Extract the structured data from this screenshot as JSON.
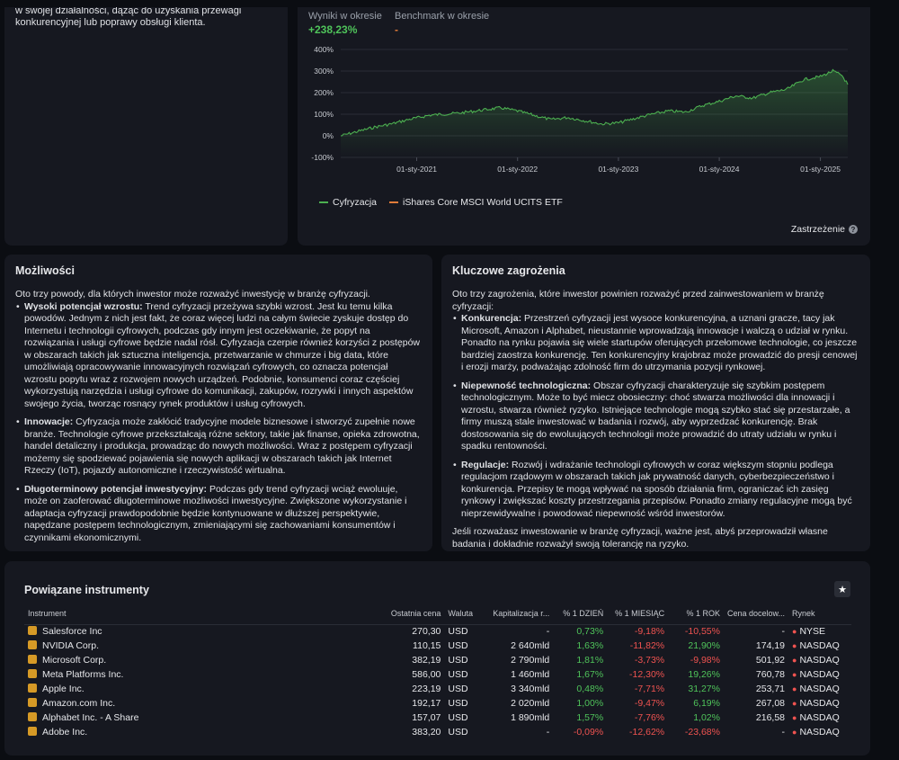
{
  "description": {
    "text": "w swojej działalności, dążąc do uzyskania przewagi konkurencyjnej lub poprawy obsługi klienta."
  },
  "performance": {
    "results_label": "Wyniki w okresie",
    "results_value": "+238,23%",
    "benchmark_label": "Benchmark w okresie",
    "benchmark_value": "-",
    "disclaimer": "Zastrzeżenie",
    "colors": {
      "series": "#4caf50",
      "benchmark": "#e07b39",
      "positive": "#4fc35a"
    }
  },
  "chart_data": {
    "type": "line",
    "yticks": [
      "400%",
      "300%",
      "200%",
      "100%",
      "0%",
      "-100%"
    ],
    "ylim": [
      -100,
      400
    ],
    "xticks": [
      "01-sty-2021",
      "01-sty-2022",
      "01-sty-2023",
      "01-sty-2024",
      "01-sty-2025"
    ],
    "grid": true,
    "legend_position": "bottom-left",
    "series": [
      {
        "name": "Cyfryzacja",
        "color": "#4caf50",
        "points": [
          [
            "2020-04-01",
            0
          ],
          [
            "2020-06-01",
            20
          ],
          [
            "2020-08-01",
            40
          ],
          [
            "2020-10-01",
            55
          ],
          [
            "2020-12-01",
            75
          ],
          [
            "2021-02-15",
            95
          ],
          [
            "2021-04-01",
            100
          ],
          [
            "2021-06-01",
            105
          ],
          [
            "2021-08-01",
            115
          ],
          [
            "2021-11-01",
            130
          ],
          [
            "2022-01-01",
            115
          ],
          [
            "2022-03-01",
            95
          ],
          [
            "2022-05-01",
            75
          ],
          [
            "2022-07-01",
            85
          ],
          [
            "2022-09-01",
            70
          ],
          [
            "2022-11-01",
            55
          ],
          [
            "2023-01-01",
            60
          ],
          [
            "2023-03-01",
            80
          ],
          [
            "2023-05-01",
            100
          ],
          [
            "2023-07-01",
            115
          ],
          [
            "2023-09-01",
            110
          ],
          [
            "2023-11-01",
            140
          ],
          [
            "2024-01-01",
            160
          ],
          [
            "2024-03-01",
            185
          ],
          [
            "2024-05-01",
            175
          ],
          [
            "2024-07-01",
            200
          ],
          [
            "2024-09-01",
            215
          ],
          [
            "2024-11-01",
            260
          ],
          [
            "2025-01-01",
            275
          ],
          [
            "2025-02-15",
            300
          ],
          [
            "2025-03-20",
            280
          ],
          [
            "2025-04-10",
            238
          ]
        ]
      },
      {
        "name": "iShares Core MSCI World UCITS ETF",
        "color": "#e07b39",
        "points": []
      }
    ]
  },
  "opportunities": {
    "title": "Możliwości",
    "intro": "Oto trzy powody, dla których inwestor może rozważyć inwestycję w branżę cyfryzacji.",
    "items": [
      {
        "term": "Wysoki potencjał wzrostu:",
        "text": " Trend cyfryzacji przeżywa szybki wzrost. Jest ku temu kilka powodów. Jednym z nich jest fakt, że coraz więcej ludzi na całym świecie zyskuje dostęp do Internetu i technologii cyfrowych, podczas gdy innym jest oczekiwanie, że popyt na rozwiązania i usługi cyfrowe będzie nadal rósł. Cyfryzacja czerpie również korzyści z postępów w obszarach takich jak sztuczna inteligencja, przetwarzanie w chmurze i big data, które umożliwiają opracowywanie innowacyjnych rozwiązań cyfrowych, co oznacza potencjał wzrostu popytu wraz z rozwojem nowych urządzeń. Podobnie, konsumenci coraz częściej wykorzystują narzędzia i usługi cyfrowe do komunikacji, zakupów, rozrywki i innych aspektów swojego życia, tworząc rosnący rynek produktów i usług cyfrowych."
      },
      {
        "term": "Innowacje:",
        "text": " Cyfryzacja może zakłócić tradycyjne modele biznesowe i stworzyć zupełnie nowe branże. Technologie cyfrowe przekształcają różne sektory, takie jak finanse, opieka zdrowotna, handel detaliczny i produkcja, prowadząc do nowych możliwości. Wraz z postępem cyfryzacji możemy się spodziewać pojawienia się nowych aplikacji w obszarach takich jak Internet Rzeczy (IoT), pojazdy autonomiczne i rzeczywistość wirtualna."
      },
      {
        "term": "Długoterminowy potencjał inwestycyjny:",
        "text": " Podczas gdy trend cyfryzacji wciąż ewoluuje, może on zaoferować długoterminowe możliwości inwestycyjne. Zwiększone wykorzystanie i adaptacja cyfryzacji prawdopodobnie będzie kontynuowane w dłuższej perspektywie, napędzane postępem technologicznym, zmieniającymi się zachowaniami konsumentów i czynnikami ekonomicznymi."
      }
    ]
  },
  "risks": {
    "title": "Kluczowe zagrożenia",
    "intro": "Oto trzy zagrożenia, które inwestor powinien rozważyć przed zainwestowaniem w branżę cyfryzacji:",
    "items": [
      {
        "term": "Konkurencja:",
        "text": " Przestrzeń cyfryzacji jest wysoce konkurencyjna, a uznani gracze, tacy jak Microsoft, Amazon i Alphabet, nieustannie wprowadzają innowacje i walczą o udział w rynku. Ponadto na rynku pojawia się wiele startupów oferujących przełomowe technologie, co jeszcze bardziej zaostrza konkurencję. Ten konkurencyjny krajobraz może prowadzić do presji cenowej i erozji marży, podważając zdolność firm do utrzymania pozycji rynkowej."
      },
      {
        "term": "Niepewność technologiczna:",
        "text": " Obszar cyfryzacji charakteryzuje się szybkim postępem technologicznym. Może to być miecz obosieczny: choć stwarza możliwości dla innowacji i wzrostu, stwarza również ryzyko. Istniejące technologie mogą szybko stać się przestarzałe, a firmy muszą stale inwestować w badania i rozwój, aby wyprzedzać konkurencję. Brak dostosowania się do ewoluujących technologii może prowadzić do utraty udziału w rynku i spadku rentowności."
      },
      {
        "term": "Regulacje:",
        "text": " Rozwój i wdrażanie technologii cyfrowych w coraz większym stopniu podlega regulacjom rządowym w obszarach takich jak prywatność danych, cyberbezpieczeństwo i konkurencja. Przepisy te mogą wpływać na sposób działania firm, ograniczać ich zasięg rynkowy i zwiększać koszty przestrzegania przepisów. Ponadto zmiany regulacyjne mogą być nieprzewidywalne i powodować niepewność wśród inwestorów."
      }
    ],
    "outro": "Jeśli rozważasz inwestowanie w branżę cyfryzacji, ważne jest, abyś przeprowadził własne badania i dokładnie rozważył swoją tolerancję na ryzyko."
  },
  "instruments": {
    "title": "Powiązane instrumenty",
    "star_icon": "star-icon",
    "columns": [
      "Instrument",
      "Ostatnia cena",
      "Waluta",
      "Kapitalizacja r...",
      "% 1 DZIEŃ",
      "% 1 MIESIĄC",
      "% 1 ROK",
      "Cena docelow...",
      "Rynek"
    ],
    "rows": [
      {
        "name": "Salesforce Inc",
        "price": "270,30",
        "currency": "USD",
        "cap": "-",
        "d1": "0,73%",
        "m1": "-9,18%",
        "y1": "-10,55%",
        "target": "-",
        "market": "NYSE"
      },
      {
        "name": "NVIDIA Corp.",
        "price": "110,15",
        "currency": "USD",
        "cap": "2 640mld",
        "d1": "1,63%",
        "m1": "-11,82%",
        "y1": "21,90%",
        "target": "174,19",
        "market": "NASDAQ"
      },
      {
        "name": "Microsoft Corp.",
        "price": "382,19",
        "currency": "USD",
        "cap": "2 790mld",
        "d1": "1,81%",
        "m1": "-3,73%",
        "y1": "-9,98%",
        "target": "501,92",
        "market": "NASDAQ"
      },
      {
        "name": "Meta Platforms Inc.",
        "price": "586,00",
        "currency": "USD",
        "cap": "1 460mld",
        "d1": "1,67%",
        "m1": "-12,30%",
        "y1": "19,26%",
        "target": "760,78",
        "market": "NASDAQ"
      },
      {
        "name": "Apple Inc.",
        "price": "223,19",
        "currency": "USD",
        "cap": "3 340mld",
        "d1": "0,48%",
        "m1": "-7,71%",
        "y1": "31,27%",
        "target": "253,71",
        "market": "NASDAQ"
      },
      {
        "name": "Amazon.com Inc.",
        "price": "192,17",
        "currency": "USD",
        "cap": "2 020mld",
        "d1": "1,00%",
        "m1": "-9,47%",
        "y1": "6,19%",
        "target": "267,08",
        "market": "NASDAQ"
      },
      {
        "name": "Alphabet Inc. - A Share",
        "price": "157,07",
        "currency": "USD",
        "cap": "1 890mld",
        "d1": "1,57%",
        "m1": "-7,76%",
        "y1": "1,02%",
        "target": "216,58",
        "market": "NASDAQ"
      },
      {
        "name": "Adobe Inc.",
        "price": "383,20",
        "currency": "USD",
        "cap": "-",
        "d1": "-0,09%",
        "m1": "-12,62%",
        "y1": "-23,68%",
        "target": "-",
        "market": "NASDAQ"
      }
    ]
  }
}
